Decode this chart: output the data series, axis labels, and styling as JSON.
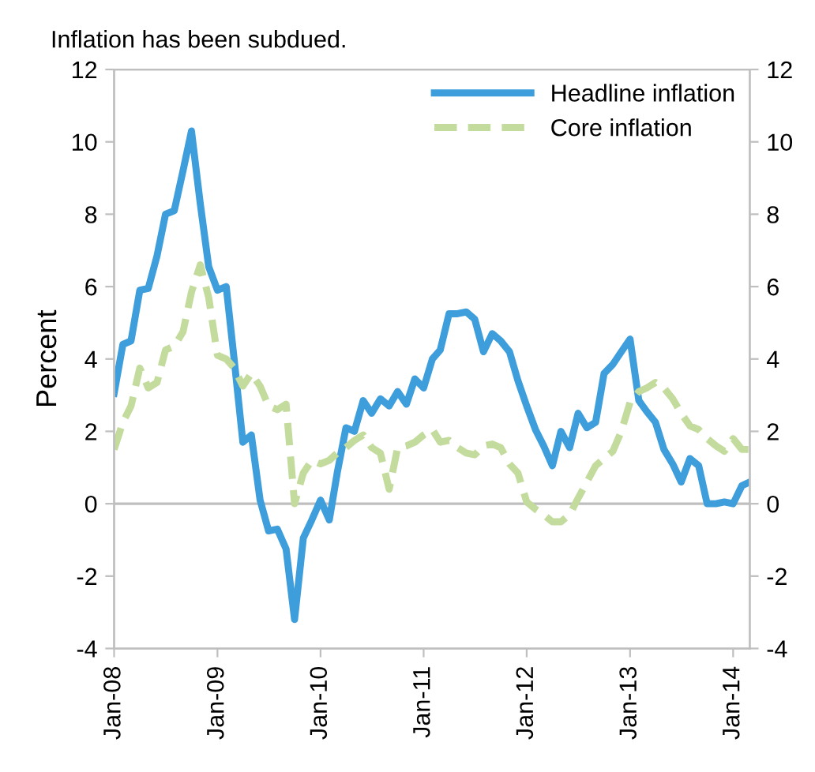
{
  "chart_data": {
    "type": "line",
    "title": "Inflation has been subdued.",
    "ylabel": "Percent",
    "x": [
      "2008-01",
      "2008-02",
      "2008-03",
      "2008-04",
      "2008-05",
      "2008-06",
      "2008-07",
      "2008-08",
      "2008-09",
      "2008-10",
      "2008-11",
      "2008-12",
      "2009-01",
      "2009-02",
      "2009-03",
      "2009-04",
      "2009-05",
      "2009-06",
      "2009-07",
      "2009-08",
      "2009-09",
      "2009-10",
      "2009-11",
      "2009-12",
      "2010-01",
      "2010-02",
      "2010-03",
      "2010-04",
      "2010-05",
      "2010-06",
      "2010-07",
      "2010-08",
      "2010-09",
      "2010-10",
      "2010-11",
      "2010-12",
      "2011-01",
      "2011-02",
      "2011-03",
      "2011-04",
      "2011-05",
      "2011-06",
      "2011-07",
      "2011-08",
      "2011-09",
      "2011-10",
      "2011-11",
      "2011-12",
      "2012-01",
      "2012-02",
      "2012-03",
      "2012-04",
      "2012-05",
      "2012-06",
      "2012-07",
      "2012-08",
      "2012-09",
      "2012-10",
      "2012-11",
      "2012-12",
      "2013-01",
      "2013-02",
      "2013-03",
      "2013-04",
      "2013-05",
      "2013-06",
      "2013-07",
      "2013-08",
      "2013-09",
      "2013-10",
      "2013-11",
      "2013-12",
      "2014-01",
      "2014-02",
      "2014-03"
    ],
    "series": [
      {
        "name": "Headline inflation",
        "color": "#3e9edc",
        "line_style": "solid",
        "values": [
          3.05,
          4.4,
          4.5,
          5.9,
          5.95,
          6.85,
          8.0,
          8.1,
          9.2,
          10.3,
          8.3,
          6.55,
          5.9,
          6.0,
          4.0,
          1.7,
          1.9,
          0.1,
          -0.75,
          -0.7,
          -1.25,
          -3.2,
          -0.95,
          -0.45,
          0.1,
          -0.45,
          0.85,
          2.1,
          2.0,
          2.85,
          2.5,
          2.9,
          2.7,
          3.1,
          2.75,
          3.45,
          3.2,
          4.0,
          4.25,
          5.25,
          5.25,
          5.3,
          5.1,
          4.2,
          4.7,
          4.5,
          4.2,
          3.4,
          2.7,
          2.05,
          1.6,
          1.05,
          2.0,
          1.55,
          2.5,
          2.1,
          2.25,
          3.6,
          3.85,
          4.2,
          4.55,
          2.85,
          2.55,
          2.25,
          1.5,
          1.1,
          0.6,
          1.25,
          1.05,
          0.0,
          0.0,
          0.05,
          0.0,
          0.5,
          0.6
        ]
      },
      {
        "name": "Core inflation",
        "color": "#c3dc9d",
        "line_style": "dashed",
        "values": [
          1.5,
          2.25,
          2.7,
          3.75,
          3.2,
          3.35,
          4.25,
          4.35,
          4.75,
          5.85,
          6.6,
          5.7,
          4.1,
          4.0,
          3.75,
          3.25,
          3.6,
          3.25,
          2.7,
          2.6,
          2.75,
          0.0,
          0.85,
          1.2,
          1.1,
          1.2,
          1.4,
          1.55,
          1.75,
          1.9,
          1.55,
          1.4,
          0.4,
          1.55,
          1.6,
          1.7,
          1.9,
          2.05,
          1.7,
          1.75,
          1.55,
          1.4,
          1.35,
          1.6,
          1.65,
          1.55,
          1.1,
          0.85,
          0.05,
          -0.15,
          -0.3,
          -0.5,
          -0.5,
          -0.3,
          0.15,
          0.6,
          1.05,
          1.25,
          1.45,
          2.0,
          2.8,
          3.1,
          3.2,
          3.35,
          3.2,
          2.9,
          2.5,
          2.15,
          2.05,
          1.8,
          1.6,
          1.45,
          1.8,
          1.5,
          1.5
        ]
      }
    ],
    "xlim": [
      "2008-01",
      "2014-03"
    ],
    "xticks": [
      {
        "value": "2008-01",
        "label": "Jan-08"
      },
      {
        "value": "2009-01",
        "label": "Jan-09"
      },
      {
        "value": "2010-01",
        "label": "Jan-10"
      },
      {
        "value": "2011-01",
        "label": "Jan-11"
      },
      {
        "value": "2012-01",
        "label": "Jan-12"
      },
      {
        "value": "2013-01",
        "label": "Jan-13"
      },
      {
        "value": "2014-01",
        "label": "Jan-14"
      }
    ],
    "ylim": [
      -4,
      12
    ],
    "yticks": [
      -4,
      -2,
      0,
      2,
      4,
      6,
      8,
      10,
      12
    ],
    "y2lim": [
      -4,
      12
    ],
    "y2ticks": [
      -4,
      -2,
      0,
      2,
      4,
      6,
      8,
      10,
      12
    ],
    "ref_lines": [
      {
        "axis": "y",
        "value": 0,
        "color": "#bfbfbf",
        "line_style": "solid"
      }
    ],
    "grid": false,
    "legend": "top right",
    "marker": "none"
  }
}
